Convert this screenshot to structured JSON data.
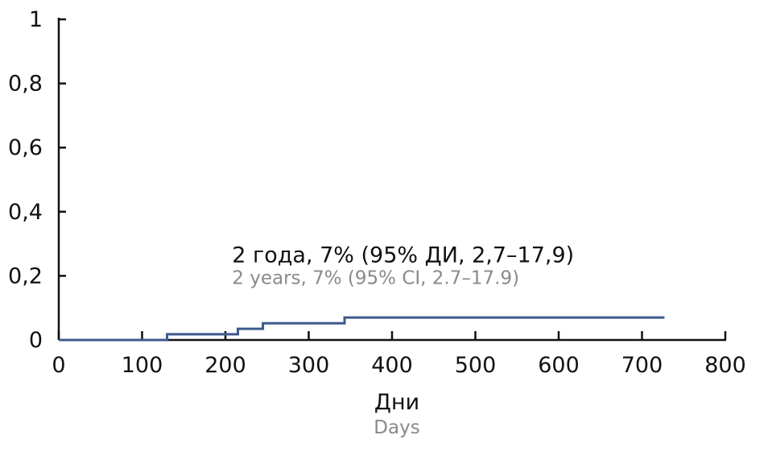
{
  "chart_data": {
    "type": "line",
    "line_style": "step",
    "x_axis": {
      "label": "Дни",
      "label_secondary": "Days",
      "range": [
        0,
        800
      ],
      "ticks": [
        0,
        100,
        200,
        300,
        400,
        500,
        600,
        700,
        800
      ],
      "tick_labels": [
        "0",
        "100",
        "200",
        "300",
        "400",
        "500",
        "600",
        "700",
        "800"
      ]
    },
    "y_axis": {
      "range": [
        0,
        1
      ],
      "ticks": [
        0,
        0.2,
        0.4,
        0.6,
        0.8,
        1
      ],
      "tick_labels": [
        "0",
        "0,2",
        "0,4",
        "0,6",
        "0,8",
        "1"
      ]
    },
    "series": [
      {
        "color": "#3b5a8c",
        "x": [
          0,
          130,
          215,
          245,
          343,
          727
        ],
        "y": [
          0,
          0.018,
          0.035,
          0.052,
          0.07,
          0.07
        ]
      }
    ],
    "annotation": {
      "text": "2 года, 7% (95% ДИ, 2,7–17,9)",
      "text_secondary": "2 years, 7% (95% CI, 2.7–17.9)",
      "x": 208,
      "y": 0.27
    },
    "grid": false
  }
}
